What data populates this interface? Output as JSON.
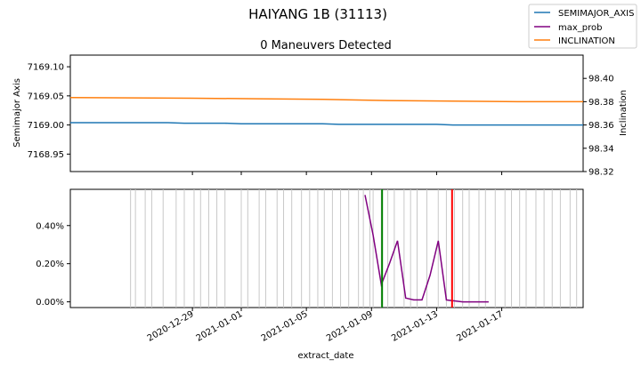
{
  "chart_data": [
    {
      "type": "line",
      "title": "HAIYANG 1B (31113)",
      "subtitle": "0 Maneuvers Detected",
      "ylabel_left": "Semimajor Axis",
      "ylabel_right": "Inclination",
      "ylim_left": [
        7168.92,
        7169.12
      ],
      "yticks_left": [
        7168.95,
        7169.0,
        7169.05,
        7169.1
      ],
      "ytick_labels_left": [
        "7168.95",
        "7169.00",
        "7169.05",
        "7169.10"
      ],
      "ylim_right": [
        98.32,
        98.42
      ],
      "yticks_right": [
        98.32,
        98.34,
        98.36,
        98.38,
        98.4
      ],
      "ytick_labels_right": [
        "98.32",
        "98.34",
        "98.36",
        "98.38",
        "98.40"
      ],
      "series": [
        {
          "name": "SEMIMAJOR_AXIS",
          "axis": "left",
          "color": "#1f77b4",
          "x": [
            -7.5,
            -1.5,
            -0.5,
            1,
            2,
            3,
            4,
            8,
            9,
            15,
            16,
            24
          ],
          "values": [
            7169.004,
            7169.004,
            7169.003,
            7169.003,
            7169.003,
            7169.002,
            7169.002,
            7169.002,
            7169.001,
            7169.001,
            7169.0,
            7169.0
          ]
        },
        {
          "name": "INCLINATION",
          "axis": "right",
          "color": "#ff7f0e",
          "x": [
            -7.5,
            0,
            4,
            8,
            12,
            16,
            20,
            24
          ],
          "values": [
            98.3835,
            98.383,
            98.3825,
            98.382,
            98.381,
            98.3805,
            98.38,
            98.38
          ]
        }
      ]
    },
    {
      "type": "line",
      "xlabel": "extract_date",
      "ylim": [
        -0.0003,
        0.0059
      ],
      "yticks": [
        0.0,
        0.002,
        0.004
      ],
      "ytick_labels": [
        "0.00%",
        "0.20%",
        "0.40%"
      ],
      "xlim": [
        -7.5,
        24.0
      ],
      "x_epoch": "2020-12-29",
      "xticks": [
        0,
        3,
        7,
        11,
        15,
        19
      ],
      "xtick_labels": [
        "2020-12-29",
        "2021-01-01",
        "2021-01-05",
        "2021-01-09",
        "2021-01-13",
        "2021-01-17"
      ],
      "series": [
        {
          "name": "max_prob",
          "color": "#800080",
          "x": [
            10.6,
            11.1,
            11.6,
            12.1,
            12.6,
            13.1,
            13.6,
            14.1,
            14.6,
            15.1,
            15.6,
            16.1,
            16.6,
            17.1,
            17.6,
            18.2
          ],
          "values": [
            0.0056,
            0.0035,
            0.0009,
            0.002,
            0.0032,
            0.0002,
            0.0001,
            0.0001,
            0.0014,
            0.0032,
            0.0001,
            5e-05,
            0.0,
            0.0,
            0.0,
            0.0
          ]
        }
      ],
      "vertical_lines": [
        {
          "name": "green-marker",
          "x": 11.65,
          "color": "#008000"
        },
        {
          "name": "red-marker",
          "x": 15.95,
          "color": "#ff0000"
        }
      ],
      "observation_dates": [
        -3.8,
        -3.5,
        -2.9,
        -2.5,
        -1.8,
        -1.0,
        -0.5,
        0.1,
        0.5,
        1.0,
        1.5,
        2.0,
        3.0,
        3.4,
        4.1,
        4.5,
        5.2,
        5.6,
        6.1,
        6.7,
        7.2,
        7.7,
        8.1,
        8.6,
        9.1,
        9.6,
        10.2,
        10.5,
        10.9,
        11.1,
        11.6,
        12.0,
        12.4,
        13.0,
        13.4,
        13.8,
        14.4,
        15.1,
        15.6,
        16.1,
        16.6,
        17.0,
        17.6,
        18.0,
        18.6,
        19.2,
        19.6,
        20.1,
        20.5,
        21.1,
        21.6,
        22.1,
        22.6,
        23.2,
        23.6
      ]
    }
  ],
  "legend": {
    "placement": "top-right",
    "entries": [
      {
        "label": "SEMIMAJOR_AXIS",
        "color": "#1f77b4"
      },
      {
        "label": "max_prob",
        "color": "#800080"
      },
      {
        "label": "INCLINATION",
        "color": "#ff7f0e"
      }
    ]
  }
}
